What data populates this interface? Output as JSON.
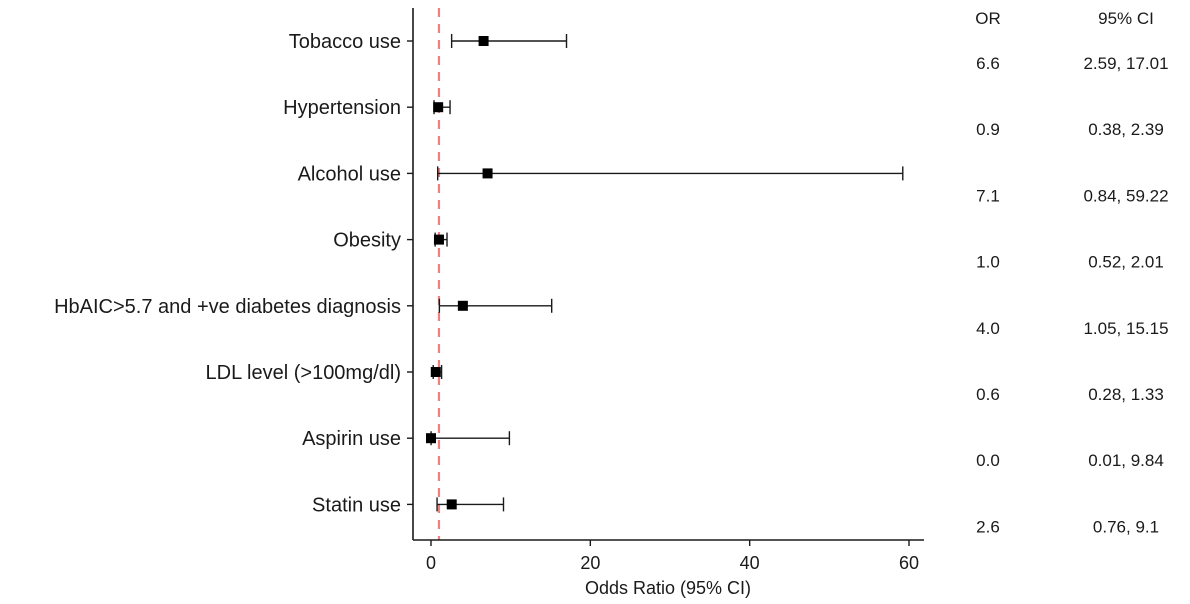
{
  "chart_data": {
    "type": "forest",
    "xlabel": "Odds Ratio (95% CI)",
    "xlim": [
      -2,
      62
    ],
    "xticks": [
      0,
      20,
      40,
      60
    ],
    "reference_line": 1,
    "reference_color": "#f08080",
    "marker_color": "#000000",
    "table_headers": {
      "or": "OR",
      "ci": "95% CI"
    },
    "rows": [
      {
        "label": "Tobacco use",
        "or": 6.6,
        "ci_low": 2.59,
        "ci_high": 17.01,
        "or_text": "6.6",
        "ci_text": "2.59, 17.01"
      },
      {
        "label": "Hypertension",
        "or": 0.9,
        "ci_low": 0.38,
        "ci_high": 2.39,
        "or_text": "0.9",
        "ci_text": "0.38, 2.39"
      },
      {
        "label": "Alcohol use",
        "or": 7.1,
        "ci_low": 0.84,
        "ci_high": 59.22,
        "or_text": "7.1",
        "ci_text": "0.84, 59.22"
      },
      {
        "label": "Obesity",
        "or": 1.0,
        "ci_low": 0.52,
        "ci_high": 2.01,
        "or_text": "1.0",
        "ci_text": "0.52, 2.01"
      },
      {
        "label": "HbAIC>5.7 and +ve diabetes diagnosis",
        "or": 4.0,
        "ci_low": 1.05,
        "ci_high": 15.15,
        "or_text": "4.0",
        "ci_text": "1.05, 15.15"
      },
      {
        "label": "LDL level (>100mg/dl)",
        "or": 0.6,
        "ci_low": 0.28,
        "ci_high": 1.33,
        "or_text": "0.6",
        "ci_text": "0.28, 1.33"
      },
      {
        "label": "Aspirin use",
        "or": 0.0,
        "ci_low": 0.01,
        "ci_high": 9.84,
        "or_text": "0.0",
        "ci_text": "0.01, 9.84"
      },
      {
        "label": "Statin use",
        "or": 2.6,
        "ci_low": 0.76,
        "ci_high": 9.1,
        "or_text": "2.6",
        "ci_text": "0.76, 9.1"
      }
    ]
  }
}
